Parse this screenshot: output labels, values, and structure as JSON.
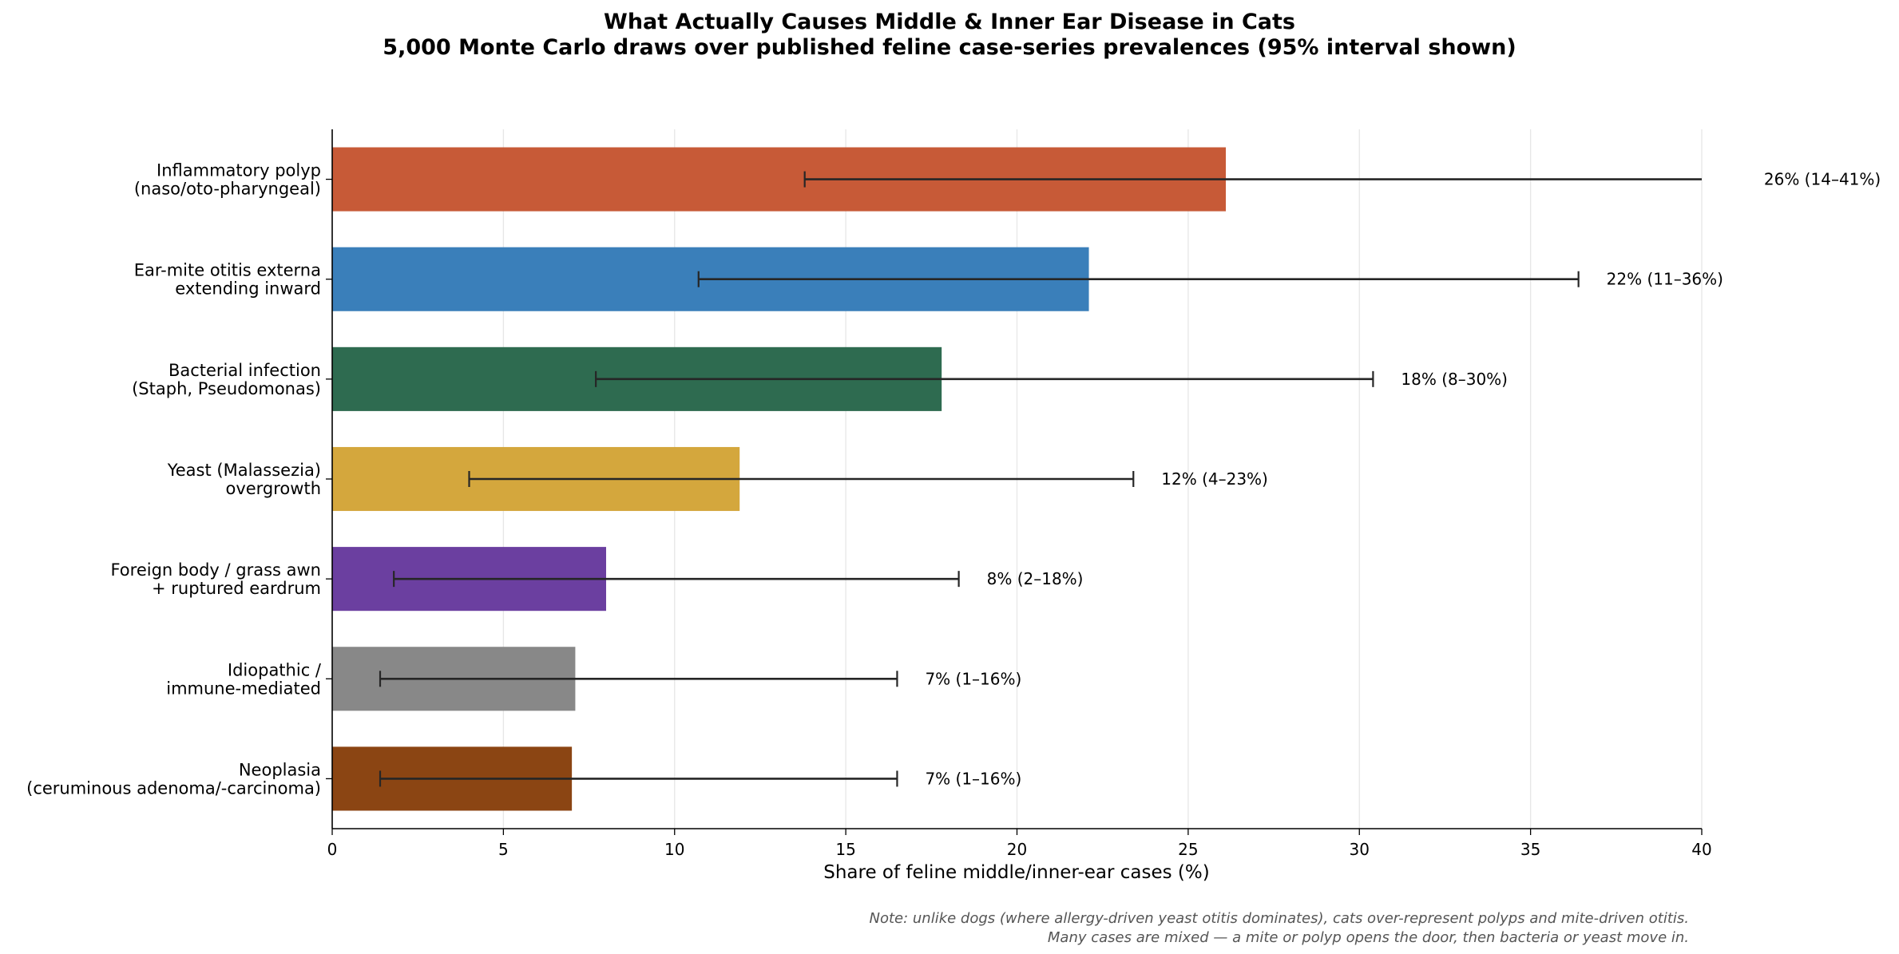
{
  "chart_data": {
    "type": "bar",
    "orientation": "horizontal",
    "title": "What Actually Causes Middle & Inner Ear Disease in Cats",
    "subtitle": "5,000 Monte Carlo draws over published feline case-series prevalences (95% interval shown)",
    "xlabel": "Share of feline middle/inner-ear cases (%)",
    "ylabel": "",
    "xlim": [
      0,
      40
    ],
    "xticks": [
      "0",
      "5",
      "10",
      "15",
      "20",
      "25",
      "30",
      "35",
      "40"
    ],
    "grid": "vertical lines on x ticks",
    "categories": [
      {
        "line1": "Inflammatory polyp",
        "line2": "(naso/oto-pharyngeal)"
      },
      {
        "line1": "Ear-mite otitis externa",
        "line2": "extending inward"
      },
      {
        "line1": "Bacterial infection",
        "line2": "(Staph, Pseudomonas)"
      },
      {
        "line1": "Yeast (Malassezia)",
        "line2": "overgrowth"
      },
      {
        "line1": "Foreign body / grass awn",
        "line2": "+ ruptured eardrum"
      },
      {
        "line1": "Idiopathic /",
        "line2": "immune-mediated"
      },
      {
        "line1": "Neoplasia",
        "line2": "(ceruminous adenoma/-carcinoma)"
      }
    ],
    "values": [
      26.1,
      22.1,
      17.8,
      11.9,
      8.0,
      7.1,
      7.0
    ],
    "ci_low": [
      13.8,
      10.7,
      7.7,
      4.0,
      1.8,
      1.4,
      1.4
    ],
    "ci_high": [
      41.0,
      36.4,
      30.4,
      23.4,
      18.3,
      16.5,
      16.5
    ],
    "value_labels": [
      "26%  (14–41%)",
      "22%  (11–36%)",
      "18%  (8–30%)",
      "12%  (4–23%)",
      "8%  (2–18%)",
      "7%  (1–16%)",
      "7%  (1–16%)"
    ],
    "colors": [
      "#c75a37",
      "#3a7fba",
      "#2e6b50",
      "#d4a73d",
      "#6b3fa0",
      "#888888",
      "#8b4513"
    ],
    "note": [
      "Note: unlike dogs (where allergy-driven yeast otitis dominates), cats over-represent polyps and mite-driven otitis.",
      "Many cases are mixed — a mite or polyp opens the door, then bacteria or yeast move in."
    ]
  }
}
